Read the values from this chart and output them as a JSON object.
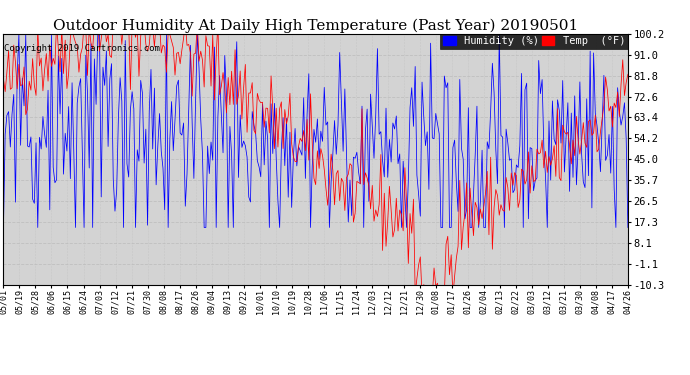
{
  "title": "Outdoor Humidity At Daily High Temperature (Past Year) 20190501",
  "copyright": "Copyright 2019 Cartronics.com",
  "yticks": [
    100.2,
    91.0,
    81.8,
    72.6,
    63.4,
    54.2,
    45.0,
    35.7,
    26.5,
    17.3,
    8.1,
    -1.1,
    -10.3
  ],
  "xlabels": [
    "05/01",
    "05/19",
    "05/28",
    "06/06",
    "06/15",
    "06/24",
    "07/03",
    "07/12",
    "07/21",
    "07/30",
    "08/08",
    "08/17",
    "08/26",
    "09/04",
    "09/13",
    "09/22",
    "10/01",
    "10/10",
    "10/19",
    "10/28",
    "11/06",
    "11/15",
    "11/24",
    "12/03",
    "12/12",
    "12/21",
    "12/30",
    "01/08",
    "01/17",
    "01/26",
    "02/04",
    "02/13",
    "02/22",
    "03/03",
    "03/12",
    "03/21",
    "03/30",
    "04/08",
    "04/17",
    "04/26"
  ],
  "ymin": -10.3,
  "ymax": 100.2,
  "humidity_color": "#0000ff",
  "temp_color": "#ff0000",
  "background_color": "#ffffff",
  "plot_bg_color": "#d3d3d3",
  "grid_color": "#aaaaaa",
  "title_fontsize": 11,
  "legend_humidity_label": "Humidity (%)",
  "legend_temp_label": "Temp  (°F)"
}
